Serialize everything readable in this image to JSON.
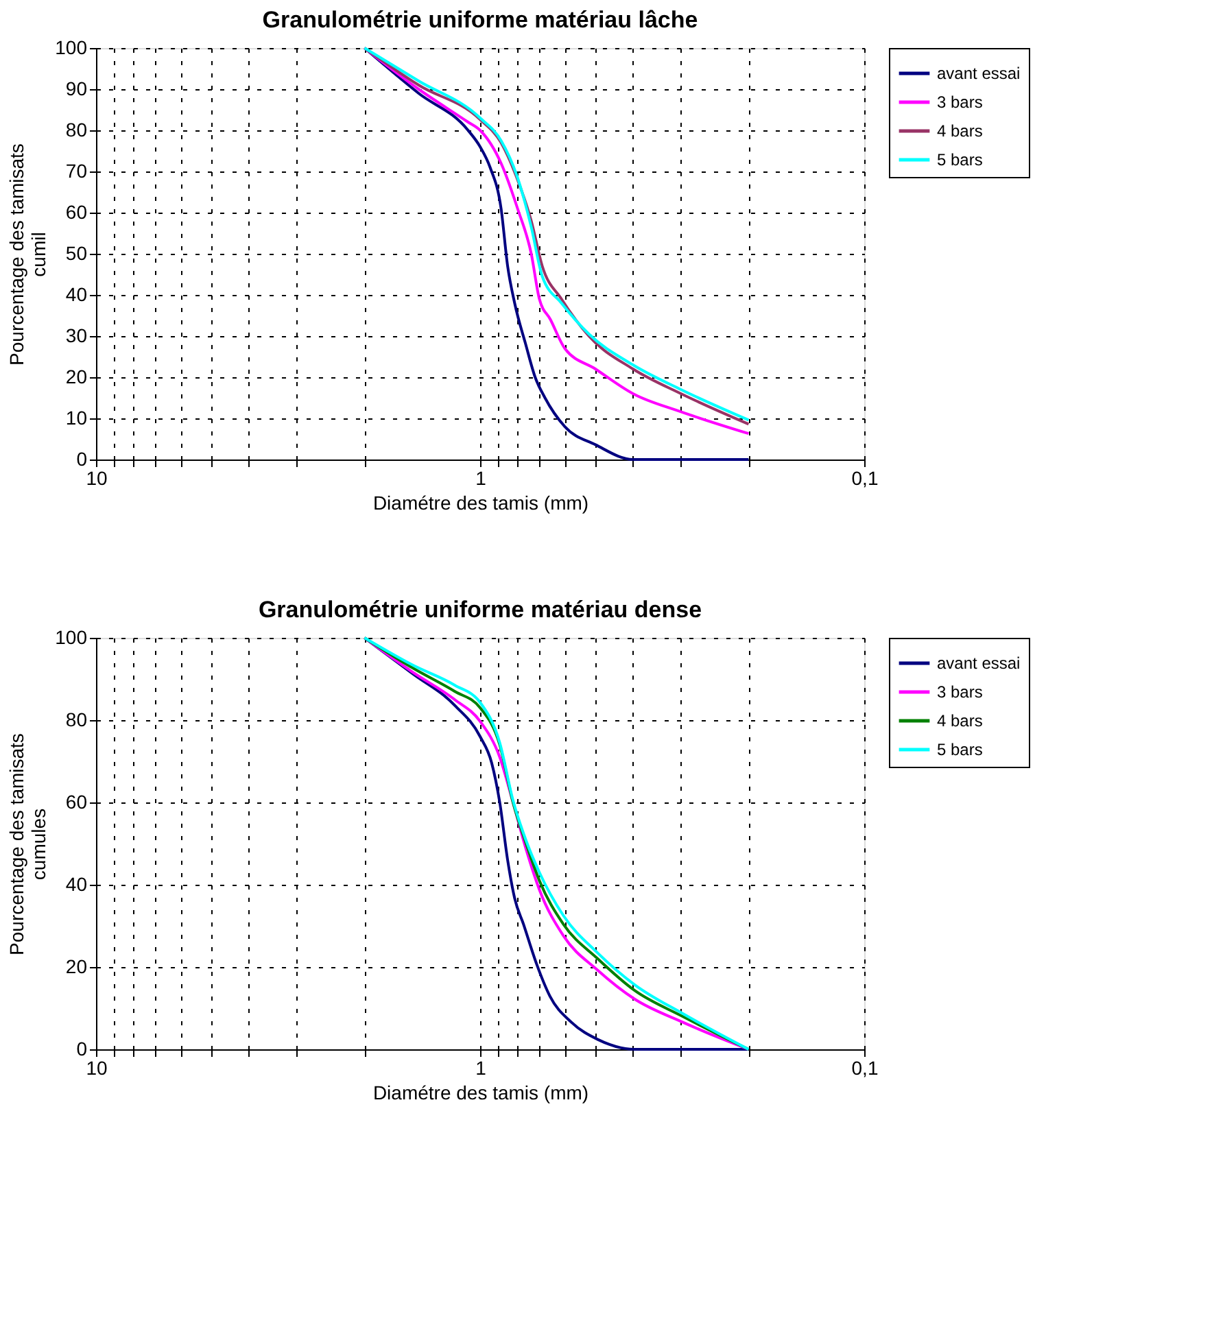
{
  "chart_data": [
    {
      "type": "line",
      "title": "Granulométrie uniforme matériau lâche",
      "xlabel": "Diamétre des tamis (mm)",
      "ylabel": "Pourcentage des tamisats\ncumil",
      "xlim": [
        10,
        0.1
      ],
      "xticks": [
        10,
        {
          "value": 9,
          "label": null
        },
        {
          "value": 8,
          "label": null
        },
        {
          "value": 7,
          "label": null
        },
        {
          "value": 6,
          "label": null
        },
        {
          "value": 5,
          "label": null
        },
        {
          "value": 4,
          "label": null
        },
        {
          "value": 3,
          "label": null
        },
        {
          "value": 2,
          "label": null
        },
        1,
        {
          "value": 0.9,
          "label": null
        },
        {
          "value": 0.8,
          "label": null
        },
        {
          "value": 0.7,
          "label": null
        },
        {
          "value": 0.6,
          "label": null
        },
        {
          "value": 0.5,
          "label": null
        },
        {
          "value": 0.4,
          "label": null
        },
        {
          "value": 0.3,
          "label": null
        },
        {
          "value": 0.2,
          "label": null
        },
        {
          "value": 0.1,
          "label": "0,1"
        }
      ],
      "ylim": [
        0,
        100
      ],
      "yticks": [
        0,
        10,
        20,
        30,
        40,
        50,
        60,
        70,
        80,
        90,
        100
      ],
      "log": "x",
      "grid": true,
      "legend": "right",
      "line_style": "solid",
      "marker": "none",
      "series": [
        {
          "name": "avant essai",
          "color": "#000080",
          "x": [
            2,
            1.446,
            1.075,
            1.0,
            0.942,
            0.882,
            0.848,
            0.813,
            0.761,
            0.719,
            0.678,
            0.602,
            0.501,
            0.4,
            0.2
          ],
          "values": [
            100,
            89,
            80,
            76,
            71,
            61,
            47,
            38,
            28,
            20,
            15,
            8,
            3.6,
            0,
            0
          ]
        },
        {
          "name": "3 bars",
          "color": "#ff00ff",
          "x": [
            2,
            1.446,
            1.075,
            1.0,
            0.882,
            0.799,
            0.736,
            0.701,
            0.656,
            0.602,
            0.501,
            0.4,
            0.3,
            0.2
          ],
          "values": [
            100,
            90,
            82,
            80,
            72,
            61,
            50,
            39,
            34,
            27,
            22,
            16,
            11.6,
            6.3
          ]
        },
        {
          "name": "4 bars",
          "color": "#993366",
          "x": [
            2,
            1.446,
            1.0,
            0.882,
            0.799,
            0.736,
            0.689,
            0.614,
            0.521,
            0.4,
            0.3,
            0.2
          ],
          "values": [
            100,
            91,
            82.6,
            77,
            68,
            58,
            47,
            39,
            30,
            22,
            16,
            8.6
          ]
        },
        {
          "name": "5 bars",
          "color": "#00ffff",
          "x": [
            2,
            1.446,
            1.0,
            0.882,
            0.799,
            0.736,
            0.689,
            0.614,
            0.521,
            0.4,
            0.3,
            0.2
          ],
          "values": [
            100,
            92,
            83,
            77.5,
            68.5,
            56.5,
            44.5,
            38,
            30.5,
            23,
            17,
            9.6
          ]
        }
      ]
    },
    {
      "type": "line",
      "title": "Granulométrie uniforme matériau dense",
      "xlabel": "Diamétre des tamis (mm)",
      "ylabel": "Pourcentage des tamisats\ncumules",
      "xlim": [
        10,
        0.1
      ],
      "xticks": [
        10,
        {
          "value": 9,
          "label": null
        },
        {
          "value": 8,
          "label": null
        },
        {
          "value": 7,
          "label": null
        },
        {
          "value": 6,
          "label": null
        },
        {
          "value": 5,
          "label": null
        },
        {
          "value": 4,
          "label": null
        },
        {
          "value": 3,
          "label": null
        },
        {
          "value": 2,
          "label": null
        },
        1,
        {
          "value": 0.9,
          "label": null
        },
        {
          "value": 0.8,
          "label": null
        },
        {
          "value": 0.7,
          "label": null
        },
        {
          "value": 0.6,
          "label": null
        },
        {
          "value": 0.5,
          "label": null
        },
        {
          "value": 0.4,
          "label": null
        },
        {
          "value": 0.3,
          "label": null
        },
        {
          "value": 0.2,
          "label": null
        },
        {
          "value": 0.1,
          "label": "0,1"
        }
      ],
      "ylim": [
        0,
        100
      ],
      "yticks": [
        0,
        20,
        40,
        60,
        80,
        100
      ],
      "log": "x",
      "grid": true,
      "legend": "right",
      "line_style": "solid",
      "marker": "none",
      "series": [
        {
          "name": "avant essai",
          "color": "#000080",
          "x": [
            2,
            1.5,
            1.165,
            1.0,
            0.933,
            0.889,
            0.848,
            0.813,
            0.771,
            0.712,
            0.658,
            0.579,
            0.494,
            0.396,
            0.2
          ],
          "values": [
            100,
            91.3,
            83.6,
            76,
            69.6,
            60,
            46,
            36.7,
            30.4,
            20.6,
            12.9,
            6.6,
            2.4,
            0,
            0
          ]
        },
        {
          "name": "3 bars",
          "color": "#ff00ff",
          "x": [
            2,
            1.5,
            1.165,
            1.0,
            0.889,
            0.821,
            0.759,
            0.701,
            0.607,
            0.494,
            0.396,
            0.297,
            0.2
          ],
          "values": [
            100,
            91.7,
            85,
            79.7,
            71,
            60,
            48.6,
            38.8,
            27.6,
            19.2,
            12.2,
            6.6,
            0
          ]
        },
        {
          "name": "4 bars",
          "color": "#008000",
          "x": [
            2,
            1.5,
            1.165,
            1.0,
            0.889,
            0.821,
            0.759,
            0.701,
            0.607,
            0.494,
            0.396,
            0.297,
            0.2
          ],
          "values": [
            100,
            92.7,
            87,
            83,
            74,
            60,
            50,
            41,
            30.4,
            22,
            14.3,
            8,
            0
          ]
        },
        {
          "name": "5 bars",
          "color": "#00ffff",
          "x": [
            2,
            1.5,
            1.165,
            1.0,
            0.889,
            0.821,
            0.759,
            0.701,
            0.607,
            0.494,
            0.396,
            0.297,
            0.2
          ],
          "values": [
            100,
            93.4,
            88.5,
            84.3,
            74.5,
            60.5,
            50.7,
            43,
            32.5,
            23.4,
            15.7,
            8.7,
            0
          ]
        }
      ]
    }
  ]
}
